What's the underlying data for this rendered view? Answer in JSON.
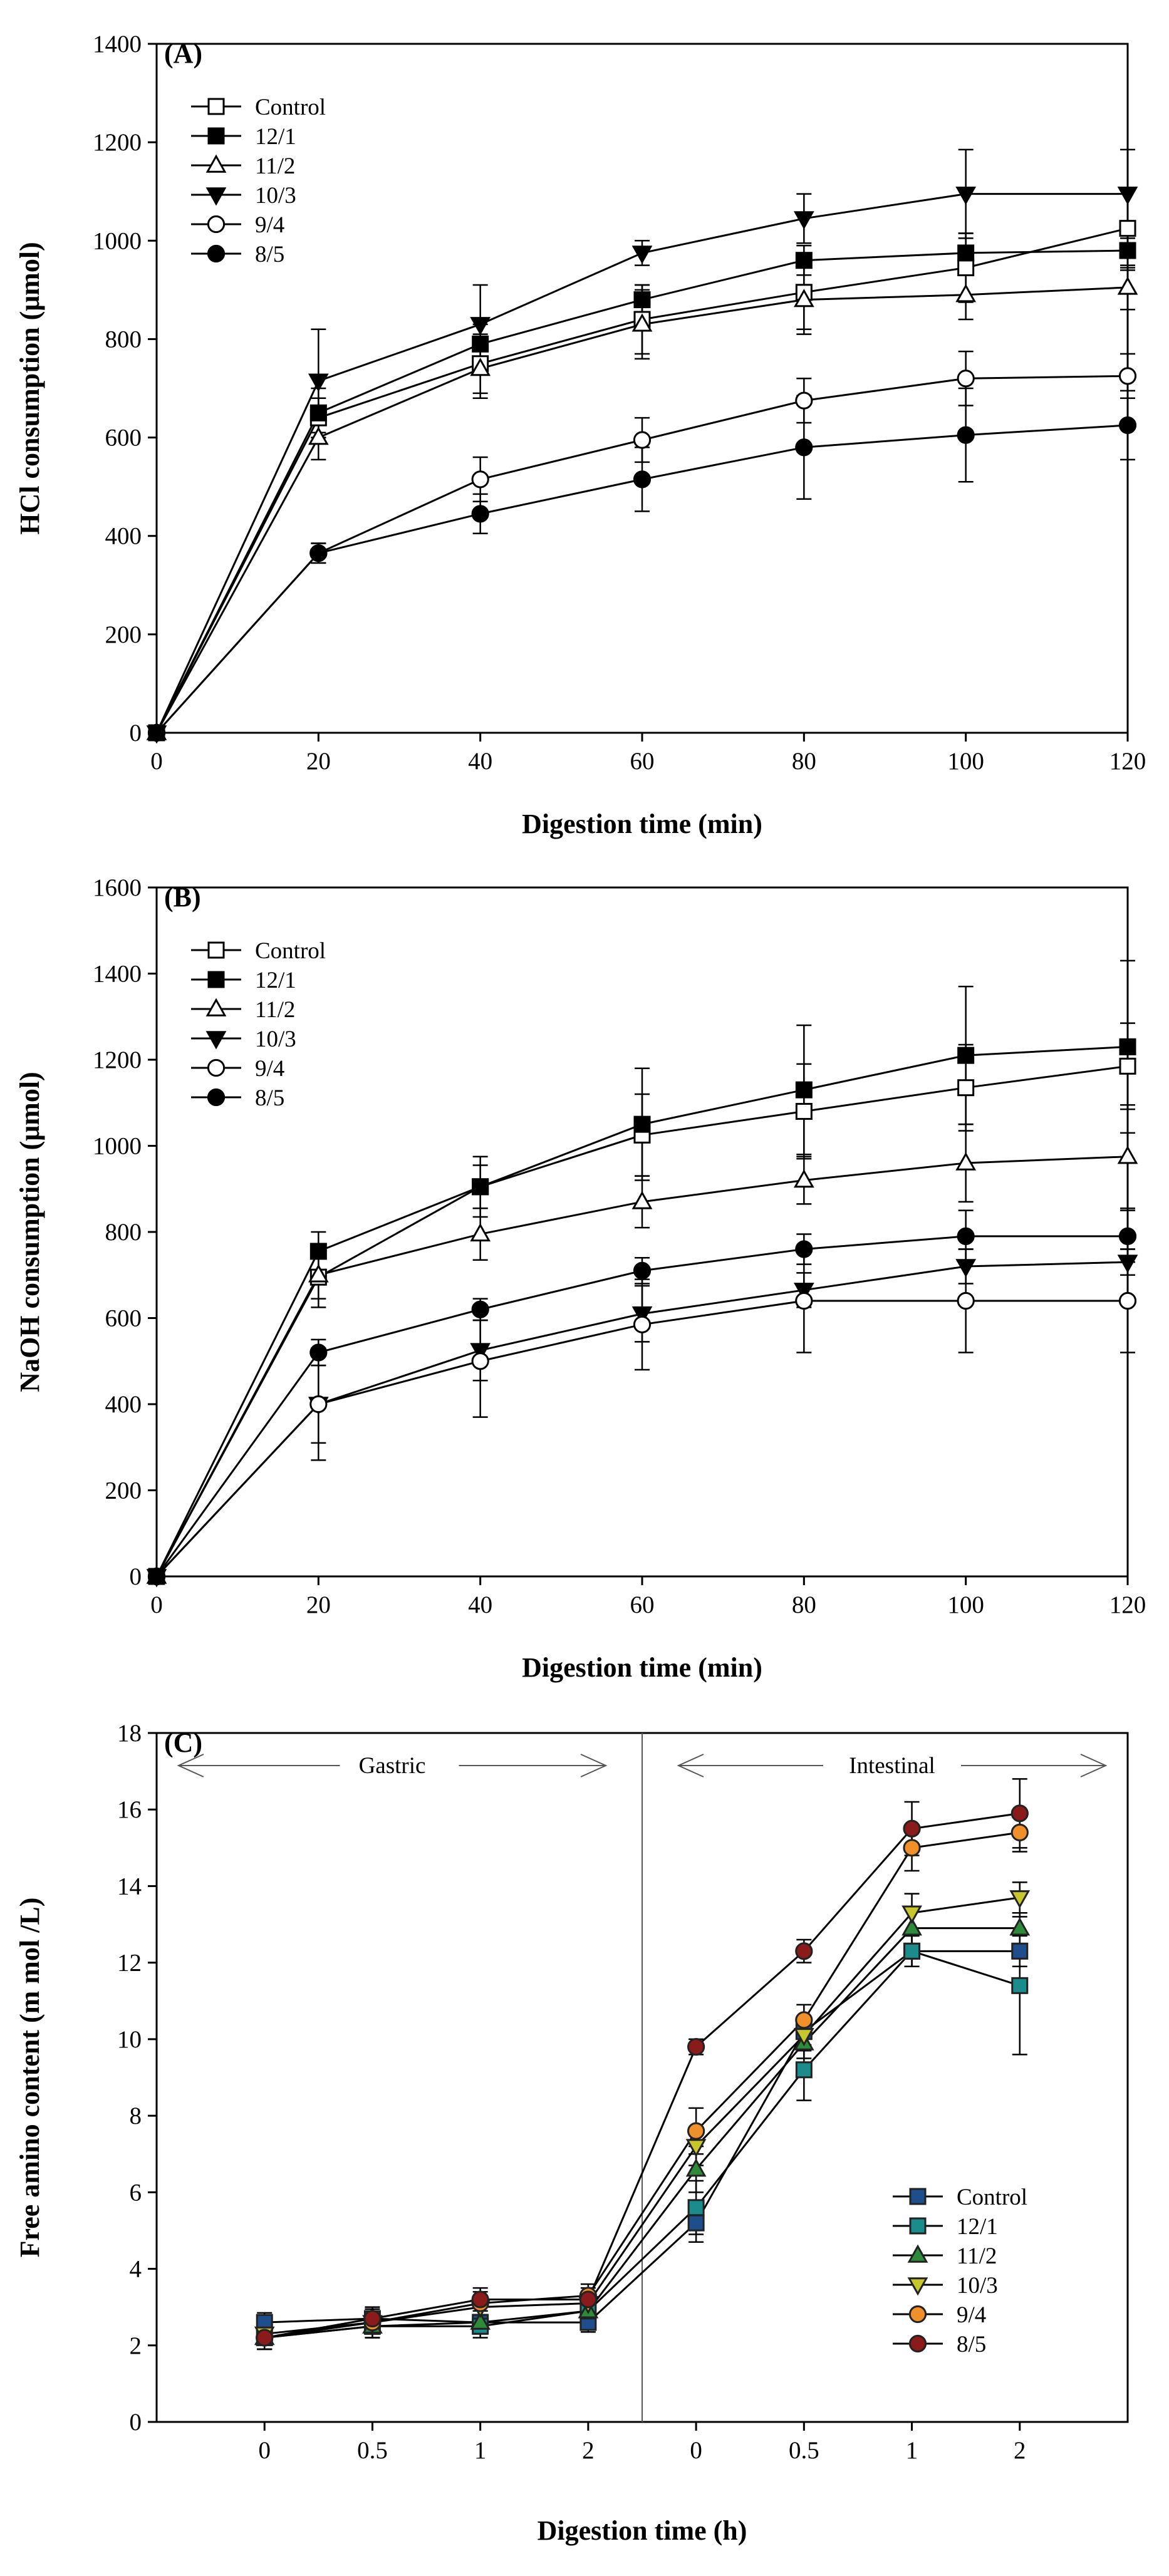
{
  "chart_data": [
    {
      "type": "line",
      "panel_label": "(A)",
      "xlabel": "Digestion time (min)",
      "ylabel": "HCl consumption (μmol)",
      "x": [
        0,
        20,
        40,
        60,
        80,
        100,
        120
      ],
      "xlim": [
        0,
        120
      ],
      "ylim": [
        0,
        1400
      ],
      "xticks": [
        "0",
        "20",
        "40",
        "60",
        "80",
        "100",
        "120"
      ],
      "yticks": [
        "0",
        "200",
        "400",
        "600",
        "800",
        "1000",
        "1200",
        "1400"
      ],
      "legend_position": "top-left",
      "series": [
        {
          "name": "Control",
          "marker": "square",
          "fill": "open",
          "color": "#000000",
          "values": [
            0,
            640,
            750,
            840,
            895,
            945,
            1025
          ],
          "errors": [
            0,
            40,
            60,
            70,
            75,
            70,
            80
          ]
        },
        {
          "name": "12/1",
          "marker": "square",
          "fill": "filled",
          "color": "#000000",
          "values": [
            0,
            650,
            790,
            880,
            960,
            975,
            980
          ],
          "errors": [
            0,
            50,
            40,
            30,
            30,
            40,
            40
          ]
        },
        {
          "name": "11/2",
          "marker": "triangle-up",
          "fill": "open",
          "color": "#000000",
          "values": [
            0,
            600,
            740,
            830,
            880,
            890,
            905
          ],
          "errors": [
            0,
            45,
            60,
            70,
            70,
            50,
            45
          ]
        },
        {
          "name": "10/3",
          "marker": "triangle-down",
          "fill": "filled",
          "color": "#000000",
          "values": [
            0,
            715,
            830,
            975,
            1045,
            1095,
            1095
          ],
          "errors": [
            0,
            105,
            80,
            25,
            50,
            90,
            90
          ]
        },
        {
          "name": "9/4",
          "marker": "circle",
          "fill": "open",
          "color": "#000000",
          "values": [
            0,
            365,
            515,
            595,
            675,
            720,
            725
          ],
          "errors": [
            0,
            20,
            45,
            45,
            45,
            55,
            45
          ]
        },
        {
          "name": "8/5",
          "marker": "circle",
          "fill": "filled",
          "color": "#000000",
          "values": [
            0,
            365,
            445,
            515,
            580,
            605,
            625
          ],
          "errors": [
            0,
            20,
            40,
            65,
            105,
            95,
            70
          ]
        }
      ]
    },
    {
      "type": "line",
      "panel_label": "(B)",
      "xlabel": "Digestion time (min)",
      "ylabel": "NaOH consumption (μmol)",
      "x": [
        0,
        20,
        40,
        60,
        80,
        100,
        120
      ],
      "xlim": [
        0,
        120
      ],
      "ylim": [
        0,
        1600
      ],
      "xticks": [
        "0",
        "20",
        "40",
        "60",
        "80",
        "100",
        "120"
      ],
      "yticks": [
        "0",
        "200",
        "400",
        "600",
        "800",
        "1000",
        "1200",
        "1400",
        "1600"
      ],
      "legend_position": "top-left",
      "series": [
        {
          "name": "Control",
          "marker": "square",
          "fill": "open",
          "color": "#000000",
          "values": [
            0,
            695,
            905,
            1025,
            1080,
            1135,
            1185
          ],
          "errors": [
            0,
            70,
            70,
            95,
            110,
            100,
            100
          ]
        },
        {
          "name": "12/1",
          "marker": "square",
          "fill": "filled",
          "color": "#000000",
          "values": [
            0,
            755,
            905,
            1050,
            1130,
            1210,
            1230
          ],
          "errors": [
            0,
            45,
            50,
            130,
            150,
            160,
            200
          ]
        },
        {
          "name": "11/2",
          "marker": "triangle-up",
          "fill": "open",
          "color": "#000000",
          "values": [
            0,
            700,
            795,
            870,
            920,
            960,
            975
          ],
          "errors": [
            0,
            55,
            60,
            60,
            55,
            90,
            120
          ]
        },
        {
          "name": "10/3",
          "marker": "triangle-down",
          "fill": "filled",
          "color": "#000000",
          "values": [
            0,
            400,
            525,
            610,
            665,
            720,
            730
          ],
          "errors": [
            0,
            90,
            70,
            65,
            40,
            40,
            30
          ]
        },
        {
          "name": "9/4",
          "marker": "circle",
          "fill": "open",
          "color": "#000000",
          "values": [
            0,
            400,
            500,
            585,
            640,
            640,
            640
          ],
          "errors": [
            0,
            130,
            130,
            105,
            120,
            120,
            120
          ]
        },
        {
          "name": "8/5",
          "marker": "circle",
          "fill": "filled",
          "color": "#000000",
          "values": [
            0,
            520,
            620,
            710,
            760,
            790,
            790
          ],
          "errors": [
            0,
            30,
            25,
            30,
            35,
            60,
            60
          ]
        }
      ]
    },
    {
      "type": "line",
      "panel_label": "(C)",
      "xlabel": "Digestion time (h)",
      "ylabel": "Free amino content (m mol /L)",
      "x_positions": [
        1,
        2,
        3,
        4,
        5,
        6,
        7,
        8
      ],
      "xlim": [
        0,
        9
      ],
      "ylim": [
        0,
        18
      ],
      "xticks": [
        "0",
        "0.5",
        "1",
        "2",
        "0",
        "0.5",
        "1",
        "2"
      ],
      "yticks": [
        "0",
        "2",
        "4",
        "6",
        "8",
        "10",
        "12",
        "14",
        "16",
        "18"
      ],
      "phase_divider_x": 4.5,
      "phase_labels": [
        "Gastric",
        "Intestinal"
      ],
      "legend_position": "bottom-right",
      "series": [
        {
          "name": "Control",
          "marker": "square",
          "color": "#1f4e8c",
          "values": [
            2.6,
            2.7,
            2.6,
            2.6,
            5.2,
            10.2,
            12.3,
            12.3
          ],
          "errors": [
            0.25,
            0.25,
            0.2,
            0.25,
            0.5,
            0.35,
            0.4,
            0.4
          ]
        },
        {
          "name": "12/1",
          "marker": "square",
          "color": "#1a8c8c",
          "values": [
            2.2,
            2.5,
            2.5,
            2.9,
            5.6,
            9.2,
            12.3,
            11.4
          ],
          "errors": [
            0.3,
            0.3,
            0.3,
            0.3,
            0.7,
            0.8,
            0.4,
            1.8
          ]
        },
        {
          "name": "11/2",
          "marker": "triangle-up",
          "color": "#2e8b3a",
          "values": [
            2.2,
            2.5,
            2.6,
            2.9,
            6.6,
            9.9,
            12.9,
            12.9
          ],
          "errors": [
            0.3,
            0.3,
            0.3,
            0.3,
            0.6,
            0.4,
            0.5,
            0.4
          ]
        },
        {
          "name": "10/3",
          "marker": "triangle-down",
          "color": "#c7c62a",
          "values": [
            2.3,
            2.6,
            3.0,
            3.1,
            7.2,
            10.1,
            13.3,
            13.7
          ],
          "errors": [
            0.3,
            0.3,
            0.3,
            0.3,
            0.5,
            0.4,
            0.5,
            0.4
          ]
        },
        {
          "name": "9/4",
          "marker": "circle",
          "color": "#f0902a",
          "values": [
            2.2,
            2.6,
            3.1,
            3.3,
            7.6,
            10.5,
            15.0,
            15.4
          ],
          "errors": [
            0.3,
            0.3,
            0.3,
            0.3,
            0.6,
            0.4,
            0.6,
            0.5
          ]
        },
        {
          "name": "8/5",
          "marker": "circle",
          "color": "#8b1a1a",
          "values": [
            2.2,
            2.7,
            3.2,
            3.2,
            9.8,
            12.3,
            15.5,
            15.9
          ],
          "errors": [
            0.3,
            0.3,
            0.3,
            0.3,
            0.2,
            0.3,
            0.7,
            0.9
          ]
        }
      ]
    }
  ]
}
